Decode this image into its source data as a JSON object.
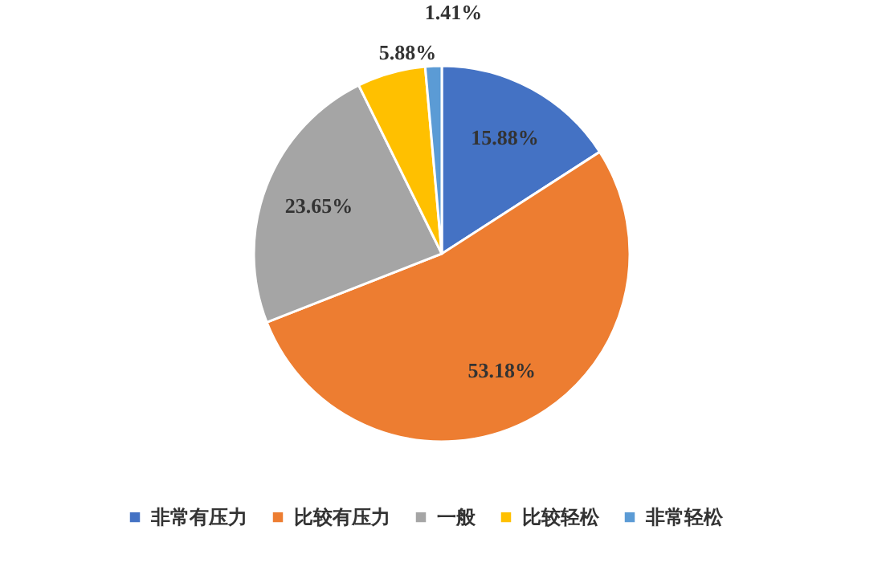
{
  "chart_data": {
    "type": "pie",
    "categories": [
      "非常有压力",
      "比较有压力",
      "一般",
      "比较轻松",
      "非常轻松"
    ],
    "values": [
      15.88,
      53.18,
      23.65,
      5.88,
      1.41
    ],
    "colors": [
      "#4472c4",
      "#ed7d31",
      "#a5a5a5",
      "#ffc000",
      "#5b9bd5"
    ],
    "value_labels": [
      "15.88%",
      "53.18%",
      "23.65%",
      "5.88%",
      "1.41%"
    ],
    "legend": "bottom"
  }
}
